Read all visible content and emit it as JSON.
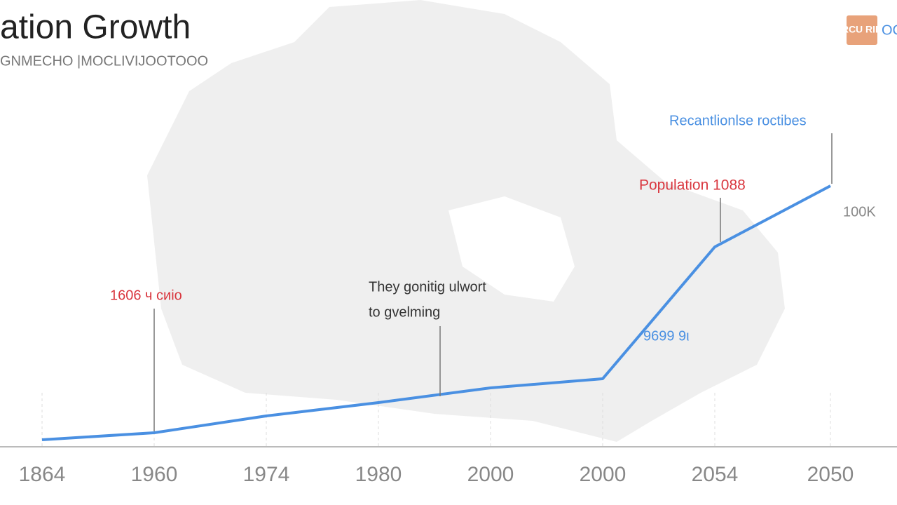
{
  "chart_data": {
    "type": "line",
    "title": "ation Growth",
    "subtitle": "GNMECHO |MOCLIVIJOOTOOO",
    "logo": "RCU RIR",
    "logo_text": "OC",
    "categories": [
      "1864",
      "1960",
      "1974",
      "1980",
      "2000",
      "2000",
      "2054",
      "2050"
    ],
    "series": [
      {
        "color": "#4a90e2",
        "values": [
          10,
          20,
          44,
          63,
          84,
          97,
          285,
          372
        ]
      }
    ],
    "annotations": [
      {
        "text": "Recantlionlse roctibes",
        "color": "#4a90e2"
      },
      {
        "text": "Population 1088",
        "color": "#d9363e"
      },
      {
        "text": "100K",
        "color": "#888888"
      },
      {
        "text": "1606 ч сиіо",
        "color": "#d9363e"
      },
      {
        "text": "They gonitig ulwort",
        "color": "#333333"
      },
      {
        "text": "to gvelming",
        "color": "#333333"
      },
      {
        "text": "9699 9ι",
        "color": "#4a90e2"
      }
    ]
  }
}
